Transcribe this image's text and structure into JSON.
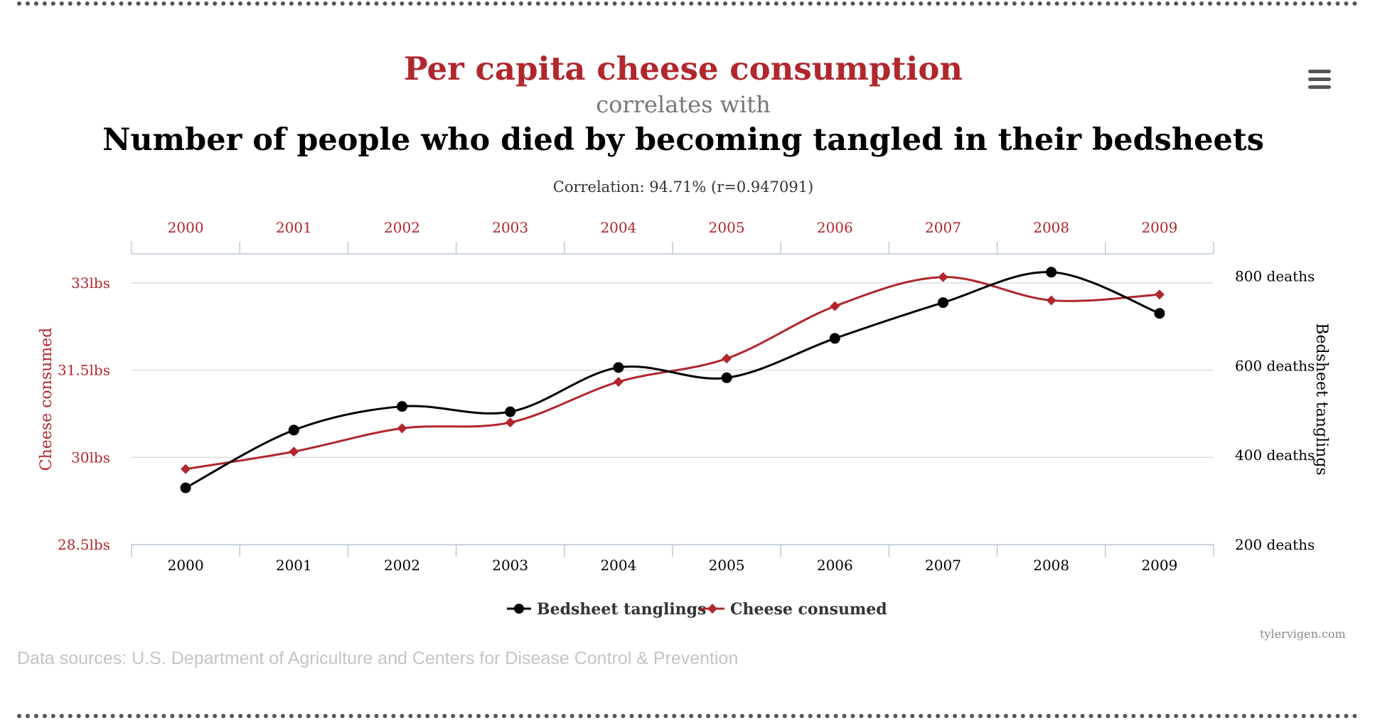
{
  "header": {
    "title": "Per capita cheese consumption",
    "connector": "correlates with",
    "subtitle": "Number of people who died by becoming tangled in their bedsheets",
    "correlation": "Correlation: 94.71% (r=0.947091)"
  },
  "menu": {
    "icon": "hamburger-menu-icon"
  },
  "chart_data": {
    "type": "line",
    "x": [
      2000,
      2001,
      2002,
      2003,
      2004,
      2005,
      2006,
      2007,
      2008,
      2009
    ],
    "title": "Per capita cheese consumption",
    "y_left": {
      "label": "Cheese consumed",
      "range": [
        28.5,
        33.5
      ],
      "ticks": [
        28.5,
        30,
        31.5,
        33
      ],
      "tick_labels": [
        "28.5lbs",
        "30lbs",
        "31.5lbs",
        "33lbs"
      ],
      "color": "#b0272d"
    },
    "y_right": {
      "label": "Bedsheet tanglings",
      "range": [
        200,
        850
      ],
      "ticks": [
        200,
        400,
        600,
        800
      ],
      "tick_labels": [
        "200 deaths",
        "400 deaths",
        "600 deaths",
        "800 deaths"
      ],
      "color": "#000000"
    },
    "series": [
      {
        "name": "Bedsheet tanglings",
        "axis": "right",
        "color": "#000000",
        "marker": "circle",
        "values": [
          327,
          456,
          509,
          497,
          596,
          573,
          661,
          741,
          809,
          717
        ]
      },
      {
        "name": "Cheese consumed",
        "axis": "left",
        "color": "#b0272d",
        "marker": "diamond",
        "values": [
          29.8,
          30.1,
          30.5,
          30.6,
          31.3,
          31.7,
          32.6,
          33.1,
          32.7,
          32.8
        ]
      }
    ],
    "grid": true,
    "legend": "bottom-center"
  },
  "footer": {
    "source": "Data sources: U.S. Department of Agriculture and Centers for Disease Control & Prevention",
    "credit": "tylervigen.com"
  }
}
